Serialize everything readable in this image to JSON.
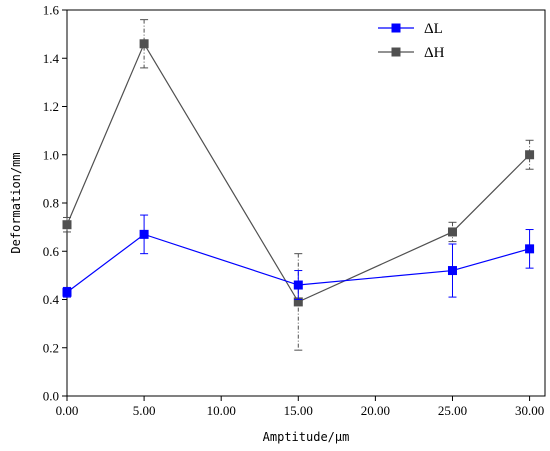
{
  "chart_data": {
    "type": "line",
    "xlabel": "Amptitude/μm",
    "ylabel": "Deformation/mm",
    "x": [
      0,
      5,
      15,
      25,
      30
    ],
    "xlim": [
      0,
      31
    ],
    "ylim": [
      0,
      1.6
    ],
    "xticks": [
      0,
      5,
      10,
      15,
      20,
      25,
      30
    ],
    "xtick_labels": [
      "0.00",
      "5.00",
      "10.00",
      "15.00",
      "20.00",
      "25.00",
      "30.00"
    ],
    "yticks": [
      0,
      0.2,
      0.4,
      0.6,
      0.8,
      1.0,
      1.2,
      1.4,
      1.6
    ],
    "ytick_labels": [
      "0.0",
      "0.2",
      "0.4",
      "0.6",
      "0.8",
      "1.0",
      "1.2",
      "1.4",
      "1.6"
    ],
    "grid": false,
    "legend_position": "top-right",
    "series": [
      {
        "name": "ΔL",
        "color": "#0000ff",
        "values": [
          0.43,
          0.67,
          0.46,
          0.52,
          0.61
        ],
        "errors": [
          0.02,
          0.08,
          0.06,
          0.11,
          0.08
        ],
        "error_style": "solid"
      },
      {
        "name": "ΔH",
        "color": "#505050",
        "values": [
          0.71,
          1.46,
          0.39,
          0.68,
          1.0
        ],
        "errors": [
          0.03,
          0.1,
          0.2,
          0.04,
          0.06
        ],
        "error_style": "dashdot"
      }
    ]
  }
}
